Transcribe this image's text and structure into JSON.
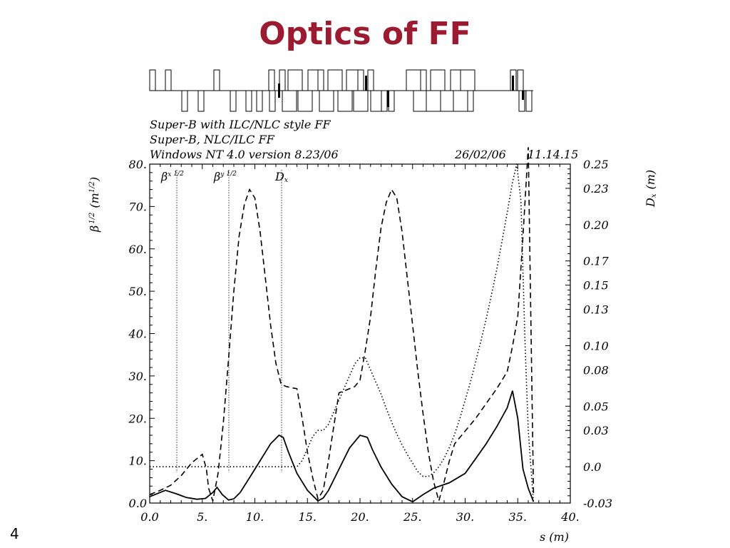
{
  "slide": {
    "title": "Optics of FF",
    "page_number": "4"
  },
  "header": {
    "line1": "Super-B with ILC/NLC style FF",
    "line2": "Super-B, NLC/ILC FF",
    "line3": "Windows NT 4.0 version 8.23/06",
    "date": "26/02/06",
    "time": "11.14.15"
  },
  "chart_data": {
    "type": "line",
    "xlabel": "s (m)",
    "ylabel_left": "β 1/2 (m 1/2)",
    "ylabel_right": "Dx (m)",
    "xlim": [
      0,
      40
    ],
    "ylim_left": [
      0,
      80
    ],
    "ylim_right": [
      -0.03,
      0.25
    ],
    "x_ticks": [
      "0.0",
      "5.",
      "10.",
      "15.",
      "20.",
      "25.",
      "30.",
      "35.",
      "40."
    ],
    "y_left_ticks": [
      "0.0",
      "10.",
      "20.",
      "30.",
      "40.",
      "50.",
      "60.",
      "70.",
      "80."
    ],
    "y_right_ticks": [
      "-0.03",
      "0.0",
      "0.03",
      "0.05",
      "0.08",
      "0.10",
      "0.13",
      "0.15",
      "0.17",
      "0.20",
      "0.23",
      "0.25"
    ],
    "legend": [
      {
        "label": "βx 1/2",
        "style": "solid"
      },
      {
        "label": "βy 1/2",
        "style": "dashed"
      },
      {
        "label": "Dx",
        "style": "dotted"
      }
    ],
    "series": [
      {
        "name": "βx 1/2",
        "style": "solid",
        "axis": "left",
        "x": [
          0,
          0.5,
          1.5,
          2.5,
          3.5,
          4.5,
          5.3,
          6.0,
          6.4,
          6.9,
          7.5,
          8.0,
          8.6,
          9.5,
          10.5,
          11.5,
          12.3,
          12.7,
          13.2,
          14.0,
          15.0,
          16.0,
          16.5,
          17.0,
          18.0,
          19.0,
          20.0,
          20.7,
          21.2,
          22.0,
          23.0,
          24.0,
          25.0,
          26.0,
          27.0,
          28.5,
          30.0,
          31.0,
          32.0,
          33.0,
          34.0,
          34.5,
          35.0,
          35.5,
          36.0,
          36.5
        ],
        "y": [
          1.5,
          2.0,
          3.0,
          2.2,
          1.3,
          0.9,
          1.1,
          2.5,
          3.7,
          2.0,
          0.7,
          1.0,
          2.5,
          6.0,
          10.0,
          14.0,
          16.0,
          15.5,
          12.0,
          7.0,
          3.0,
          0.5,
          1.2,
          3.0,
          8.0,
          13.0,
          16.0,
          15.5,
          12.5,
          8.5,
          4.5,
          1.5,
          0.3,
          2.0,
          3.5,
          4.8,
          7.0,
          10.5,
          14.0,
          18.0,
          22.5,
          26.5,
          20.0,
          8.0,
          3.5,
          0.3
        ]
      },
      {
        "name": "βy 1/2",
        "style": "dashed",
        "axis": "left",
        "x": [
          0,
          1,
          2,
          3,
          4,
          5,
          5.4,
          5.6,
          6,
          6.5,
          7,
          7.5,
          8,
          8.5,
          9,
          9.5,
          10,
          10.5,
          11,
          11.5,
          12,
          12.5,
          13,
          13.5,
          14,
          14.5,
          15,
          15.5,
          16,
          16.5,
          17,
          17.5,
          18,
          18.5,
          19,
          19.5,
          20,
          20.5,
          21,
          21.5,
          22,
          22.5,
          23,
          23.5,
          24,
          24.5,
          25,
          25.5,
          26,
          26.5,
          27,
          27.5,
          28,
          28.5,
          29,
          29.5,
          30,
          31,
          32,
          33,
          34,
          34.5,
          35,
          35.5,
          36,
          36.5
        ],
        "y": [
          2.0,
          3.0,
          4.2,
          6.5,
          9.5,
          11.5,
          8.0,
          3.5,
          0.5,
          7.0,
          19.0,
          34.0,
          50.0,
          63.0,
          70.5,
          74.0,
          72.0,
          64.0,
          53.0,
          42.0,
          33.0,
          28.0,
          27.5,
          27.2,
          27.0,
          20.0,
          12.0,
          6.0,
          1.0,
          3.0,
          10.0,
          18.0,
          26.0,
          26.5,
          27.0,
          27.5,
          29.0,
          36.0,
          44.0,
          55.0,
          65.0,
          71.0,
          74.0,
          72.0,
          64.0,
          53.0,
          42.0,
          31.0,
          21.0,
          12.0,
          5.0,
          0.5,
          5.0,
          10.0,
          14.0,
          15.5,
          17.0,
          20.0,
          23.5,
          27.0,
          31.0,
          37.0,
          44.0,
          63.0,
          84.0,
          2.0
        ]
      },
      {
        "name": "Dx",
        "style": "dotted",
        "axis": "right",
        "x": [
          0,
          14.0,
          14.5,
          15.0,
          15.5,
          16.0,
          16.5,
          17.0,
          17.5,
          18.0,
          18.5,
          19.0,
          19.5,
          20.0,
          20.5,
          21.0,
          21.5,
          22.0,
          22.5,
          23.0,
          23.5,
          24.0,
          24.5,
          25.0,
          25.5,
          26.0,
          26.5,
          27.0,
          27.5,
          28.0,
          28.5,
          29.0,
          29.5,
          30.0,
          30.5,
          31.0,
          31.5,
          32.0,
          32.5,
          33.0,
          33.5,
          34.0,
          34.5,
          34.9,
          35.3,
          35.7,
          36.0,
          36.5
        ],
        "y": [
          0.0,
          0.0,
          0.005,
          0.015,
          0.025,
          0.03,
          0.03,
          0.035,
          0.045,
          0.055,
          0.065,
          0.075,
          0.085,
          0.09,
          0.09,
          0.08,
          0.07,
          0.06,
          0.048,
          0.037,
          0.027,
          0.018,
          0.01,
          0.003,
          -0.004,
          -0.008,
          -0.008,
          -0.005,
          0.0,
          0.007,
          0.016,
          0.027,
          0.04,
          0.055,
          0.07,
          0.087,
          0.104,
          0.122,
          0.142,
          0.163,
          0.186,
          0.21,
          0.235,
          0.25,
          0.22,
          0.1,
          0.03,
          -0.03
        ]
      }
    ]
  }
}
